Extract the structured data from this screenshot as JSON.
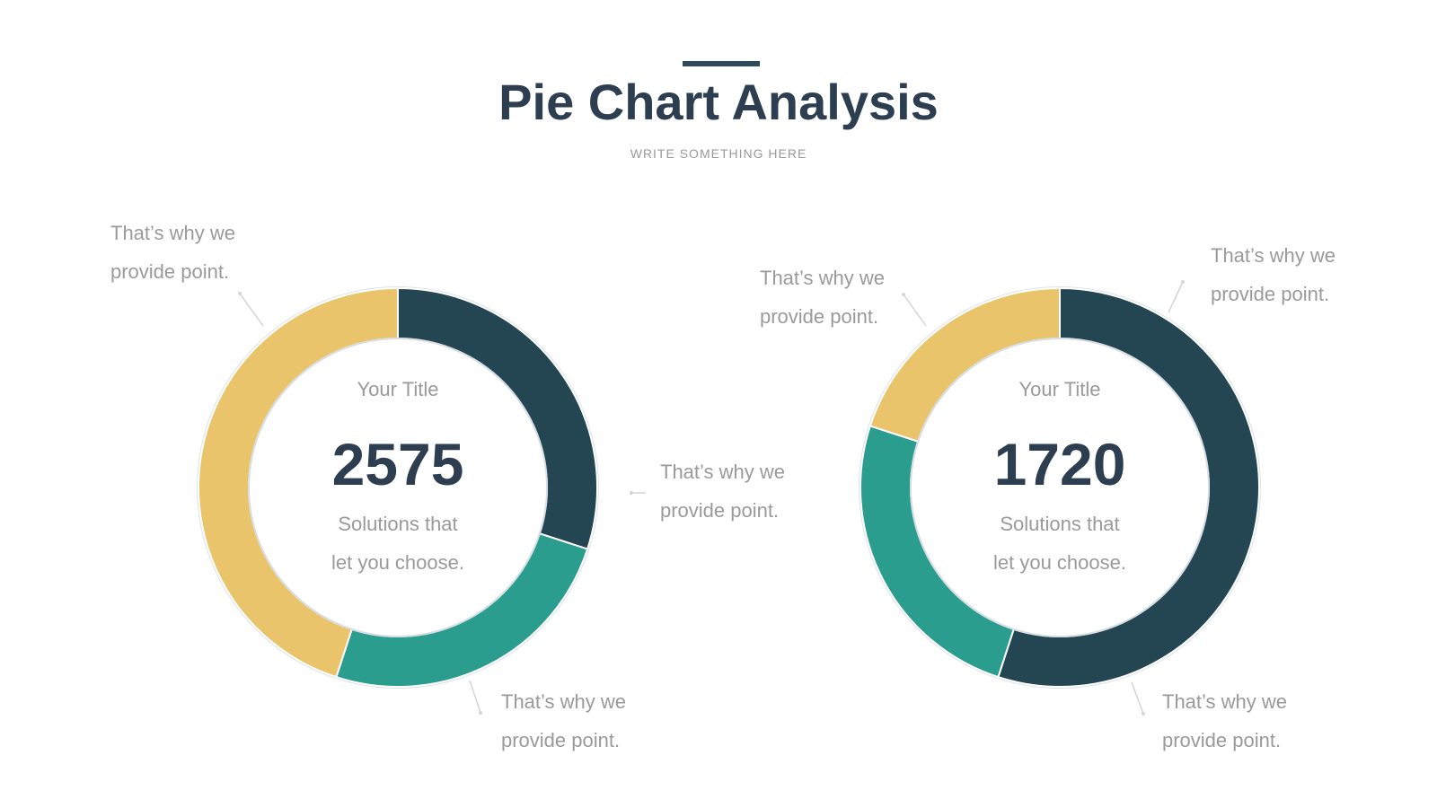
{
  "header": {
    "title": "Pie Chart Analysis",
    "subtitle": "WRITE SOMETHING HERE"
  },
  "colors": {
    "dark": "#244653",
    "teal": "#2a9d8f",
    "gold": "#e9c46a",
    "title": "#2c3e50",
    "muted": "#9a9a9a",
    "accent": "#2e4a5b"
  },
  "chart_data": [
    {
      "type": "pie",
      "variant": "donut",
      "center": {
        "title": "Your Title",
        "value": "2575",
        "caption_line1": "Solutions that",
        "caption_line2": "let you choose."
      },
      "slices": [
        {
          "value": 30,
          "color": "#244653"
        },
        {
          "value": 25,
          "color": "#2a9d8f"
        },
        {
          "value": 45,
          "color": "#e9c46a"
        }
      ],
      "callouts": [
        {
          "line1": "That’s why we",
          "line2": "provide point."
        },
        {
          "line1": "That’s why we",
          "line2": "provide point."
        },
        {
          "line1": "That’s why we",
          "line2": "provide point."
        }
      ]
    },
    {
      "type": "pie",
      "variant": "donut",
      "center": {
        "title": "Your Title",
        "value": "1720",
        "caption_line1": "Solutions that",
        "caption_line2": "let you choose."
      },
      "slices": [
        {
          "value": 55,
          "color": "#244653"
        },
        {
          "value": 25,
          "color": "#2a9d8f"
        },
        {
          "value": 20,
          "color": "#e9c46a"
        }
      ],
      "callouts": [
        {
          "line1": "That’s why we",
          "line2": "provide point."
        },
        {
          "line1": "That’s why we",
          "line2": "provide point."
        },
        {
          "line1": "That’s why we",
          "line2": "provide point."
        }
      ]
    }
  ]
}
